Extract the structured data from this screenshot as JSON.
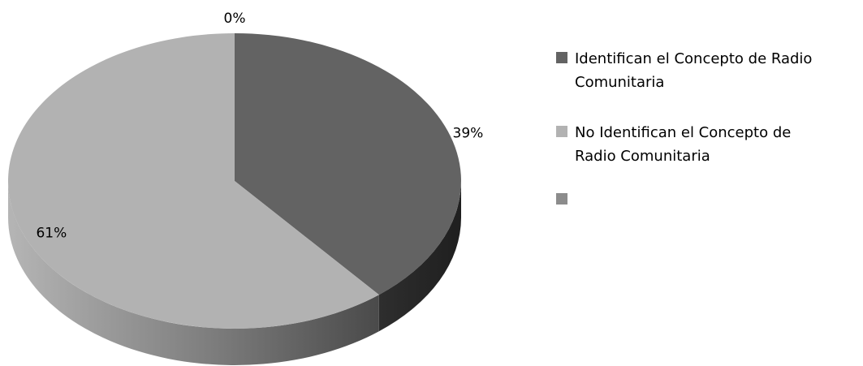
{
  "chart_data": {
    "type": "pie",
    "three_d": true,
    "legend_position": "right",
    "slices": [
      {
        "label": "Identifican el Concepto de Radio Comunitaria",
        "value": 39,
        "display": "39%",
        "color": "#636363"
      },
      {
        "label": "No Identifican el Concepto de Radio Comunitaria",
        "value": 61,
        "display": "61%",
        "color": "#b2b2b2"
      },
      {
        "label": "",
        "value": 0,
        "display": "0%",
        "color": "#8c8c8c"
      }
    ]
  },
  "legend": {
    "items": [
      {
        "line1": "Identifican el Concepto de Radio",
        "line2": "Comunitaria",
        "color": "#636363"
      },
      {
        "line1": "No Identifican el Concepto de",
        "line2": "Radio Comunitaria",
        "color": "#b2b2b2"
      },
      {
        "line1": "",
        "line2": "",
        "color": "#8c8c8c"
      }
    ]
  }
}
